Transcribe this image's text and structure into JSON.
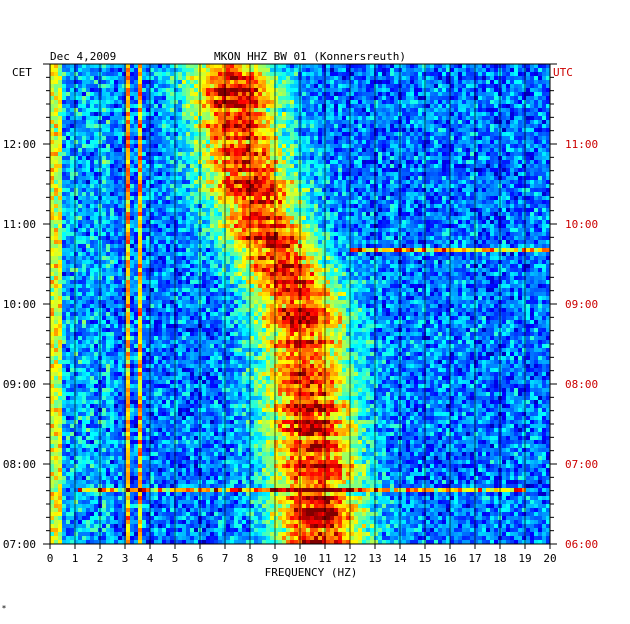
{
  "header": {
    "date": "Dec 4,2009",
    "station": "MKON HHZ BW 01 (Konnersreuth)"
  },
  "footer_mark": "*",
  "chart_data": {
    "type": "heatmap",
    "xlabel": "FREQUENCY (HZ)",
    "left_axis_label": "CET",
    "right_axis_label": "UTC",
    "xlim": [
      0,
      20
    ],
    "x_ticks": [
      "0",
      "1",
      "2",
      "3",
      "4",
      "5",
      "6",
      "7",
      "8",
      "9",
      "10",
      "11",
      "12",
      "13",
      "14",
      "15",
      "16",
      "17",
      "18",
      "19",
      "20"
    ],
    "left_ticks": [
      "07:00",
      "08:00",
      "09:00",
      "10:00",
      "11:00",
      "12:00"
    ],
    "right_ticks": [
      "06:00",
      "07:00",
      "08:00",
      "09:00",
      "10:00",
      "11:00"
    ],
    "time_range_cet_hours": [
      7.0,
      13.0
    ],
    "colors": {
      "background": "#1030c8",
      "ridge": "#e8e000",
      "left_axis_text": "#000000",
      "right_axis_text": "#cc0000"
    },
    "energy_ridge": [
      {
        "time": "07:00",
        "freq_hz": 10.8
      },
      {
        "time": "08:00",
        "freq_hz": 10.6
      },
      {
        "time": "09:00",
        "freq_hz": 10.3
      },
      {
        "time": "10:00",
        "freq_hz": 10.0
      },
      {
        "time": "11:00",
        "freq_hz": 8.5
      },
      {
        "time": "12:00",
        "freq_hz": 7.6
      },
      {
        "time": "13:00",
        "freq_hz": 7.2
      }
    ],
    "narrow_lines_hz": [
      3.1,
      3.6
    ],
    "transients": [
      {
        "time": "10:40",
        "freq_range_hz": [
          12.0,
          20.0
        ]
      },
      {
        "time": "07:40",
        "freq_range_hz": [
          1.2,
          19.0
        ]
      }
    ]
  }
}
